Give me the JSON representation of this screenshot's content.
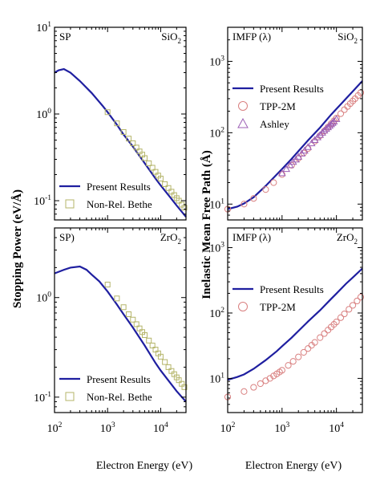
{
  "figure": {
    "left_ylabel": "Stopping Power (eV/Å)",
    "right_ylabel": "Inelastic Mean Free Path (Å)",
    "xlabel": "Electron Energy (eV)"
  },
  "chart_data": [
    {
      "id": "sp-sio2",
      "type": "line",
      "corner_left": "SP",
      "corner_right_base": "SiO",
      "corner_right_sub": "2",
      "xscale": "log",
      "yscale": "log",
      "xlim": [
        100,
        30000
      ],
      "ylim": [
        0.06,
        10
      ],
      "xticks": [],
      "yticks": [
        {
          "base": "10",
          "exp": "-1",
          "value": 0.1
        },
        {
          "base": "10",
          "exp": "0",
          "value": 1
        },
        {
          "base": "10",
          "exp": "1",
          "value": 10
        }
      ],
      "legend": {
        "position": "bottom-left",
        "entries": [
          {
            "label": "Present Results",
            "marker": "line"
          },
          {
            "label": "Non-Rel. Bethe",
            "marker": "square"
          }
        ]
      },
      "series": [
        {
          "name": "Present Results",
          "style": "line",
          "x": [
            100,
            120,
            150,
            200,
            300,
            500,
            800,
            1000,
            1500,
            2000,
            3000,
            5000,
            8000,
            10000,
            15000,
            20000,
            30000
          ],
          "y": [
            3.0,
            3.2,
            3.3,
            3.0,
            2.4,
            1.75,
            1.25,
            1.05,
            0.75,
            0.58,
            0.42,
            0.27,
            0.18,
            0.15,
            0.11,
            0.088,
            0.065
          ]
        },
        {
          "name": "Non-Rel. Bethe",
          "style": "square",
          "x": [
            1000,
            1500,
            2000,
            2500,
            3000,
            3500,
            4000,
            4500,
            5000,
            6000,
            7000,
            8000,
            9000,
            10000,
            12000,
            14000,
            16000,
            18000,
            20000,
            22000,
            25000,
            28000
          ],
          "y": [
            1.05,
            0.78,
            0.62,
            0.52,
            0.46,
            0.41,
            0.37,
            0.34,
            0.31,
            0.27,
            0.24,
            0.215,
            0.195,
            0.18,
            0.155,
            0.14,
            0.127,
            0.116,
            0.107,
            0.1,
            0.09,
            0.083
          ]
        }
      ]
    },
    {
      "id": "imfp-sio2",
      "type": "line",
      "corner_left": "IMFP (λ)",
      "corner_right_base": "SiO",
      "corner_right_sub": "2",
      "xscale": "log",
      "yscale": "log",
      "xlim": [
        100,
        30000
      ],
      "ylim": [
        6,
        3000
      ],
      "xticks": [],
      "yticks": [
        {
          "base": "10",
          "exp": "1",
          "value": 10
        },
        {
          "base": "10",
          "exp": "2",
          "value": 100
        },
        {
          "base": "10",
          "exp": "3",
          "value": 1000
        }
      ],
      "legend": {
        "position": "top-left",
        "entries": [
          {
            "label": "Present Results",
            "marker": "line"
          },
          {
            "label": "TPP-2M",
            "marker": "circle"
          },
          {
            "label": "Ashley",
            "marker": "triangle"
          }
        ]
      },
      "series": [
        {
          "name": "Present Results",
          "style": "line",
          "x": [
            100,
            150,
            200,
            300,
            500,
            800,
            1000,
            1500,
            2000,
            3000,
            5000,
            8000,
            10000,
            15000,
            20000,
            30000
          ],
          "y": [
            8.5,
            9.2,
            10.2,
            12.5,
            18,
            26,
            31,
            43,
            55,
            78,
            118,
            180,
            215,
            300,
            380,
            530
          ]
        },
        {
          "name": "TPP-2M",
          "style": "circle",
          "x": [
            100,
            200,
            300,
            500,
            700,
            1000,
            1500,
            2000,
            2500,
            3000,
            4000,
            5000,
            6000,
            7000,
            8000,
            9000,
            10000,
            12000,
            14000,
            16000,
            18000,
            20000,
            22000,
            25000,
            28000
          ],
          "y": [
            8.5,
            10,
            12,
            16,
            20,
            26,
            35,
            44,
            52,
            60,
            76,
            91,
            106,
            120,
            134,
            147,
            160,
            185,
            210,
            233,
            256,
            278,
            300,
            332,
            364
          ]
        },
        {
          "name": "Ashley",
          "style": "triangle",
          "x": [
            1000,
            1200,
            1400,
            1600,
            1800,
            2000,
            2300,
            2600,
            3000,
            3500,
            4000,
            4500,
            5000,
            5500,
            6000,
            6500,
            7000,
            7500,
            8000,
            8500,
            9000,
            10000
          ],
          "y": [
            27,
            31,
            35,
            39,
            42,
            46,
            51,
            56,
            63,
            71,
            79,
            86,
            93,
            100,
            107,
            113,
            119,
            125,
            131,
            137,
            143,
            155
          ]
        }
      ]
    },
    {
      "id": "sp-zro2",
      "type": "line",
      "corner_left": "SP)",
      "corner_right_base": "ZrO",
      "corner_right_sub": "2",
      "xscale": "log",
      "yscale": "log",
      "xlim": [
        100,
        30000
      ],
      "ylim": [
        0.07,
        5
      ],
      "xticks": [
        {
          "base": "10",
          "exp": "2",
          "value": 100
        },
        {
          "base": "10",
          "exp": "3",
          "value": 1000
        },
        {
          "base": "10",
          "exp": "4",
          "value": 10000
        }
      ],
      "yticks": [
        {
          "base": "10",
          "exp": "-1",
          "value": 0.1
        },
        {
          "base": "10",
          "exp": "0",
          "value": 1
        }
      ],
      "legend": {
        "position": "bottom-left",
        "entries": [
          {
            "label": "Present Results",
            "marker": "line"
          },
          {
            "label": "Non-Rel. Bethe",
            "marker": "square"
          }
        ]
      },
      "series": [
        {
          "name": "Present Results",
          "style": "line",
          "x": [
            100,
            150,
            200,
            300,
            400,
            500,
            700,
            1000,
            1500,
            2000,
            3000,
            5000,
            8000,
            10000,
            15000,
            20000,
            30000
          ],
          "y": [
            1.75,
            1.9,
            2.0,
            2.05,
            1.9,
            1.7,
            1.45,
            1.15,
            0.85,
            0.68,
            0.5,
            0.33,
            0.22,
            0.185,
            0.14,
            0.115,
            0.09
          ]
        },
        {
          "name": "Non-Rel. Bethe",
          "style": "square",
          "x": [
            1000,
            1500,
            2000,
            2500,
            3000,
            3500,
            4000,
            4500,
            5000,
            6000,
            7000,
            8000,
            9000,
            10000,
            12000,
            14000,
            16000,
            18000,
            20000,
            22000,
            25000,
            28000
          ],
          "y": [
            1.35,
            0.98,
            0.8,
            0.68,
            0.6,
            0.54,
            0.49,
            0.45,
            0.42,
            0.37,
            0.33,
            0.3,
            0.275,
            0.255,
            0.225,
            0.2,
            0.183,
            0.17,
            0.158,
            0.148,
            0.136,
            0.126
          ]
        }
      ]
    },
    {
      "id": "imfp-zro2",
      "type": "line",
      "corner_left": "IMFP (λ)",
      "corner_right_base": "ZrO",
      "corner_right_sub": "2",
      "xscale": "log",
      "yscale": "log",
      "xlim": [
        100,
        30000
      ],
      "ylim": [
        3,
        2000
      ],
      "xticks": [
        {
          "base": "10",
          "exp": "2",
          "value": 100
        },
        {
          "base": "10",
          "exp": "3",
          "value": 1000
        },
        {
          "base": "10",
          "exp": "4",
          "value": 10000
        }
      ],
      "yticks": [
        {
          "base": "10",
          "exp": "1",
          "value": 10
        },
        {
          "base": "10",
          "exp": "2",
          "value": 100
        },
        {
          "base": "10",
          "exp": "3",
          "value": 1000
        }
      ],
      "legend": {
        "position": "top-left",
        "entries": [
          {
            "label": "Present Results",
            "marker": "line"
          },
          {
            "label": "TPP-2M",
            "marker": "circle"
          }
        ]
      },
      "series": [
        {
          "name": "Present Results",
          "style": "line",
          "x": [
            100,
            150,
            200,
            300,
            500,
            800,
            1000,
            1500,
            2000,
            3000,
            5000,
            8000,
            10000,
            15000,
            20000,
            30000
          ],
          "y": [
            9.5,
            10.5,
            11.5,
            14,
            19,
            26,
            31,
            42,
            53,
            74,
            110,
            165,
            198,
            280,
            350,
            480
          ]
        },
        {
          "name": "TPP-2M",
          "style": "circle",
          "x": [
            100,
            200,
            300,
            400,
            500,
            600,
            700,
            800,
            900,
            1000,
            1300,
            1600,
            2000,
            2500,
            3000,
            3500,
            4000,
            5000,
            6000,
            7000,
            8000,
            9000,
            10000,
            12000,
            14000,
            17000,
            20000,
            24000,
            28000
          ],
          "y": [
            5.2,
            6.3,
            7.3,
            8.3,
            9.2,
            10,
            10.9,
            11.7,
            12.5,
            13.3,
            15.8,
            18.2,
            21.3,
            25,
            28.6,
            32.1,
            35.5,
            42,
            48.5,
            54.8,
            61,
            67,
            73,
            85,
            97,
            114,
            131,
            153,
            175
          ]
        }
      ]
    }
  ]
}
